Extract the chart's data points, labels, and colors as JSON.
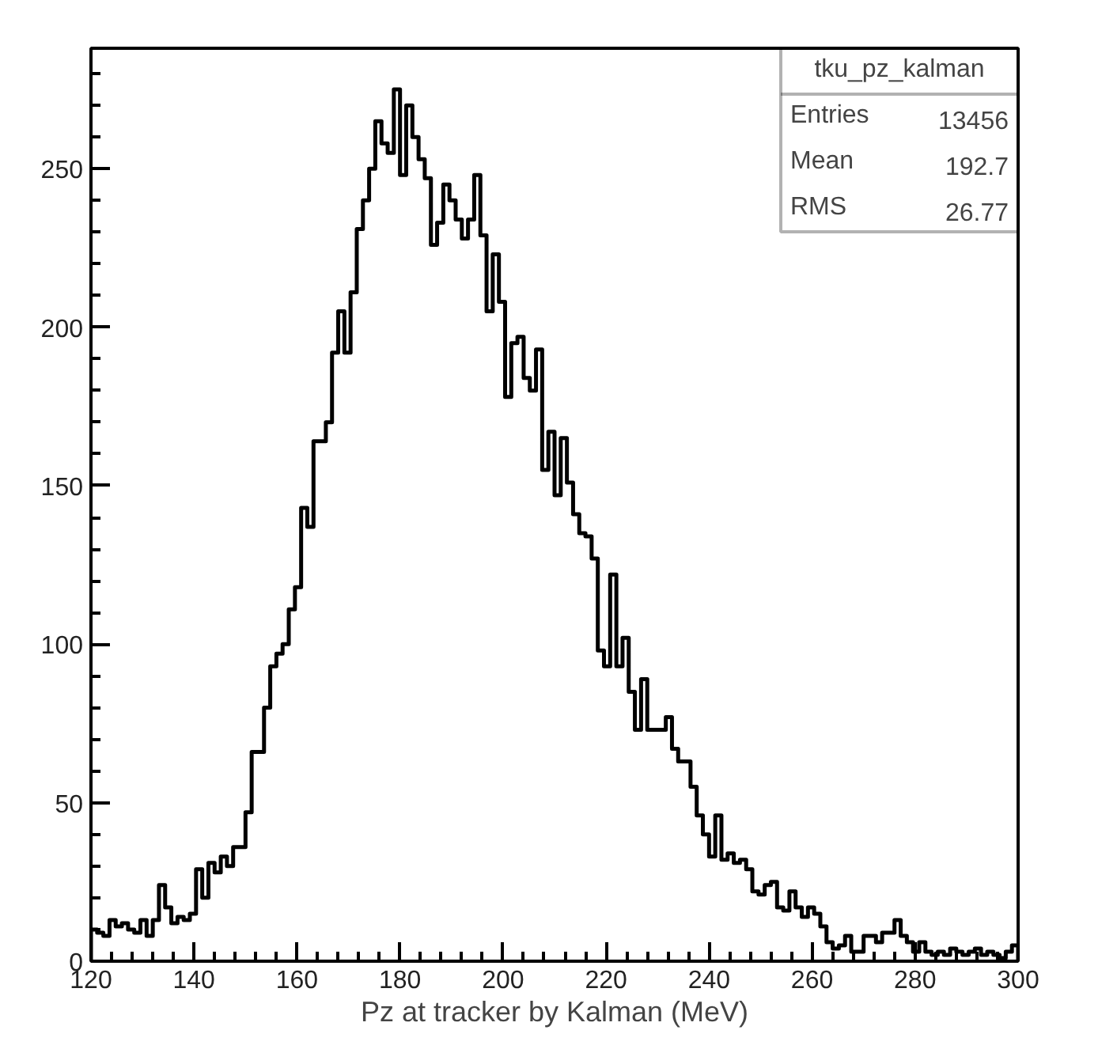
{
  "chart_data": {
    "type": "histogram",
    "xlabel": "Pz at tracker by Kalman (MeV)",
    "bins": [
      120,
      121.2,
      122.4,
      123.6,
      124.8,
      126,
      127.2,
      128.4,
      129.6,
      130.8,
      132,
      133.2,
      134.4,
      135.6,
      136.8,
      138,
      139.2,
      140.4,
      141.6,
      142.8,
      144,
      145.2,
      146.4,
      147.6,
      148.8,
      150,
      151.2,
      152.4,
      153.6,
      154.8,
      156,
      157.2,
      158.4,
      159.6,
      160.8,
      162,
      163.2,
      164.4,
      165.6,
      166.8,
      168,
      169.2,
      170.4,
      171.6,
      172.8,
      174,
      175.2,
      176.4,
      177.6,
      178.8,
      180,
      181.2,
      182.4,
      183.6,
      184.8,
      186,
      187.2,
      188.4,
      189.6,
      190.8,
      192,
      193.2,
      194.4,
      195.6,
      196.8,
      198,
      199.2,
      200.4,
      201.6,
      202.8,
      204,
      205.2,
      206.4,
      207.6,
      208.8,
      210,
      211.2,
      212.4,
      213.6,
      214.8,
      216,
      217.2,
      218.4,
      219.6,
      220.8,
      222,
      223.2,
      224.4,
      225.6,
      226.8,
      228,
      229.2,
      230.4,
      231.6,
      232.8,
      234,
      235.2,
      236.4,
      237.6,
      238.8,
      240,
      241.2,
      242.4,
      243.6,
      244.8,
      246,
      247.2,
      248.4,
      249.6,
      250.8,
      252,
      253.2,
      254.4,
      255.6,
      256.8,
      258,
      259.2,
      260.4,
      261.6,
      262.8,
      264,
      265.2,
      266.4,
      267.6,
      268.8,
      270,
      271.2,
      272.4,
      273.6,
      274.8,
      276,
      277.2,
      278.4,
      279.6,
      280.8,
      282,
      283.2,
      284.4,
      285.6,
      286.8,
      288,
      289.2,
      290.4,
      291.6,
      292.8,
      294,
      295.2,
      296.4,
      297.6,
      298.8,
      300
    ],
    "values": [
      10,
      9,
      8,
      13,
      11,
      12,
      10,
      9,
      13,
      8,
      13,
      24,
      17,
      12,
      14,
      13,
      15,
      29,
      20,
      31,
      28,
      33,
      30,
      36,
      36,
      47,
      66,
      66,
      80,
      93,
      97,
      100,
      111,
      118,
      143,
      137,
      164,
      164,
      170,
      192,
      205,
      192,
      211,
      231,
      240,
      250,
      265,
      258,
      255,
      275,
      248,
      270,
      260,
      253,
      247,
      226,
      233,
      245,
      240,
      234,
      228,
      234,
      248,
      229,
      205,
      223,
      208,
      178,
      195,
      197,
      184,
      180,
      193,
      155,
      167,
      147,
      165,
      151,
      141,
      135,
      134,
      127,
      98,
      93,
      122,
      93,
      102,
      85,
      73,
      89,
      73,
      73,
      73,
      77,
      67,
      63,
      63,
      55,
      46,
      40,
      33,
      46,
      32,
      34,
      31,
      32,
      29,
      22,
      21,
      24,
      25,
      17,
      16,
      22,
      17,
      14,
      17,
      15,
      11,
      6,
      4,
      5,
      8,
      3,
      3,
      8,
      8,
      6,
      9,
      9,
      13,
      8,
      6,
      3,
      6,
      3,
      2,
      3,
      2,
      4,
      3,
      2,
      3,
      4,
      2,
      3,
      2,
      1,
      3,
      5
    ],
    "color": "#000000",
    "xlim": [
      120,
      300
    ],
    "xticks": [
      120,
      140,
      160,
      180,
      200,
      220,
      240,
      260,
      280,
      300
    ],
    "ylim": [
      0,
      288
    ],
    "yticks": [
      0,
      50,
      100,
      150,
      200,
      250
    ],
    "annotations": [
      "tku_pz_kalman",
      "Entries 13456",
      "Mean 192.7",
      "RMS 26.77"
    ]
  }
}
